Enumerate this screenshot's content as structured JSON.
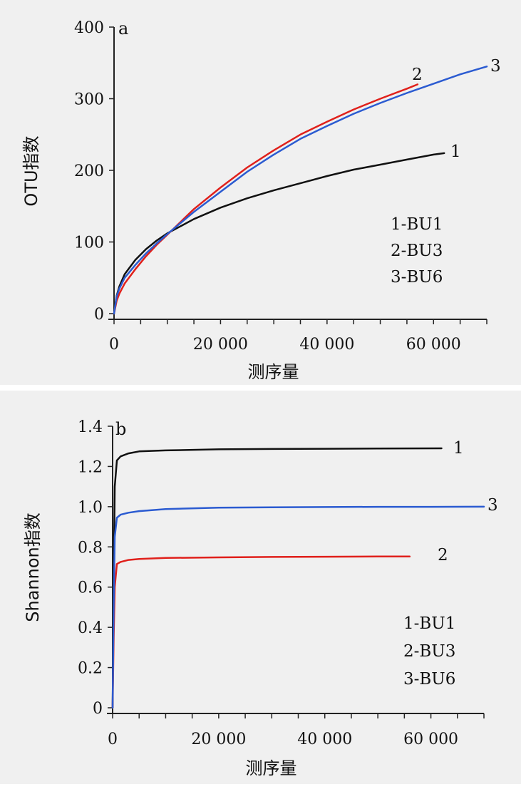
{
  "chart_data": [
    {
      "type": "line",
      "panel_label": "a",
      "xlabel": "测序量",
      "ylabel": "OTU指数",
      "xlim": [
        0,
        70000
      ],
      "ylim": [
        0,
        400
      ],
      "x_ticks": [
        0,
        20000,
        40000,
        60000
      ],
      "x_tick_labels": [
        "0",
        "20 000",
        "40 000",
        "60 000"
      ],
      "y_ticks": [
        0,
        100,
        200,
        300,
        400
      ],
      "y_tick_labels": [
        "0",
        "100",
        "200",
        "300",
        "400"
      ],
      "legend": [
        "1-BU1",
        "2-BU3",
        "3-BU6"
      ],
      "series": [
        {
          "name": "1",
          "color": "#111111",
          "x": [
            0,
            500,
            1000,
            2000,
            4000,
            6000,
            8000,
            10000,
            15000,
            20000,
            25000,
            30000,
            35000,
            40000,
            45000,
            50000,
            55000,
            60000,
            62000
          ],
          "y": [
            0,
            25,
            38,
            55,
            75,
            90,
            102,
            112,
            132,
            148,
            161,
            172,
            182,
            192,
            201,
            208,
            215,
            222,
            224
          ]
        },
        {
          "name": "2",
          "color": "#e0201b",
          "x": [
            0,
            500,
            1000,
            2000,
            4000,
            6000,
            8000,
            10000,
            15000,
            20000,
            25000,
            30000,
            35000,
            40000,
            45000,
            50000,
            55000,
            57000
          ],
          "y": [
            0,
            18,
            28,
            42,
            62,
            80,
            96,
            110,
            146,
            176,
            204,
            228,
            250,
            268,
            285,
            300,
            314,
            320
          ]
        },
        {
          "name": "3",
          "color": "#2b5bd1",
          "x": [
            0,
            500,
            1000,
            2000,
            4000,
            6000,
            8000,
            10000,
            15000,
            20000,
            25000,
            30000,
            35000,
            40000,
            45000,
            50000,
            55000,
            60000,
            65000,
            70000
          ],
          "y": [
            0,
            24,
            35,
            50,
            68,
            84,
            98,
            111,
            142,
            170,
            198,
            222,
            244,
            262,
            279,
            294,
            308,
            321,
            334,
            345
          ]
        }
      ]
    },
    {
      "type": "line",
      "panel_label": "b",
      "xlabel": "测序量",
      "ylabel": "Shannon指数",
      "xlim": [
        0,
        70000
      ],
      "ylim": [
        0,
        1.4
      ],
      "x_ticks": [
        0,
        20000,
        40000,
        60000
      ],
      "x_tick_labels": [
        "0",
        "20 000",
        "40 000",
        "60 000"
      ],
      "y_ticks": [
        0,
        0.2,
        0.4,
        0.6,
        0.8,
        1.0,
        1.2,
        1.4
      ],
      "y_tick_labels": [
        "0",
        "0.2",
        "0.4",
        "0.6",
        "0.8",
        "1.0",
        "1.2",
        "1.4"
      ],
      "legend": [
        "1-BU1",
        "2-BU3",
        "3-BU6"
      ],
      "series": [
        {
          "name": "1",
          "color": "#111111",
          "x": [
            0,
            200,
            400,
            800,
            1500,
            3000,
            5000,
            10000,
            20000,
            30000,
            40000,
            50000,
            62000
          ],
          "y": [
            0,
            0.6,
            1.1,
            1.23,
            1.25,
            1.265,
            1.275,
            1.28,
            1.285,
            1.287,
            1.288,
            1.289,
            1.29
          ]
        },
        {
          "name": "2",
          "color": "#e0201b",
          "x": [
            0,
            200,
            400,
            800,
            1500,
            3000,
            5000,
            10000,
            20000,
            30000,
            40000,
            50000,
            56000
          ],
          "y": [
            0,
            0.35,
            0.6,
            0.715,
            0.725,
            0.735,
            0.74,
            0.745,
            0.748,
            0.75,
            0.751,
            0.752,
            0.752
          ]
        },
        {
          "name": "3",
          "color": "#2b5bd1",
          "x": [
            0,
            200,
            400,
            800,
            1500,
            3000,
            5000,
            10000,
            20000,
            30000,
            40000,
            50000,
            60000,
            70000
          ],
          "y": [
            0,
            0.5,
            0.85,
            0.945,
            0.96,
            0.97,
            0.978,
            0.988,
            0.995,
            0.997,
            0.998,
            0.999,
            0.999,
            1.0
          ]
        }
      ]
    }
  ]
}
